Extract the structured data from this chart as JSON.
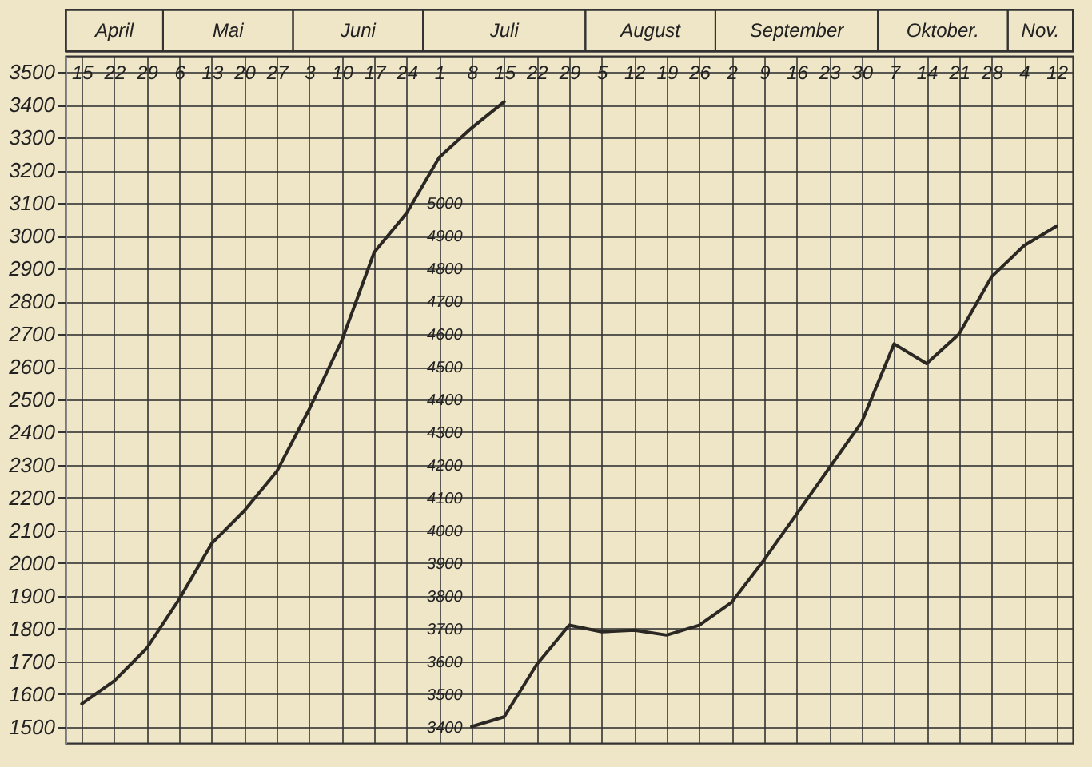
{
  "chart_data": {
    "type": "line",
    "categories": [
      "15",
      "22",
      "29",
      "6",
      "13",
      "20",
      "27",
      "3",
      "10",
      "17",
      "24",
      "1",
      "8",
      "15",
      "22",
      "29",
      "5",
      "12",
      "19",
      "26",
      "2",
      "9",
      "16",
      "23",
      "30",
      "7",
      "14",
      "21",
      "28",
      "4",
      "12"
    ],
    "annotations": [
      "April",
      "Mai",
      "Juni",
      "Juli",
      "August",
      "September",
      "Oktober.",
      "Nov."
    ],
    "series": [
      {
        "color": "#2b2824",
        "values": [
          1570,
          1640,
          1740,
          1890,
          2060,
          2160,
          2280,
          2470,
          2680,
          2950,
          3070,
          3240,
          3330,
          3410,
          null,
          null,
          null,
          null,
          null,
          null,
          null,
          null,
          null,
          null,
          null,
          null,
          null,
          null,
          null,
          null,
          null
        ]
      },
      {
        "color": "#2b2824",
        "axis": "y2",
        "values": [
          null,
          null,
          null,
          null,
          null,
          null,
          null,
          null,
          null,
          null,
          null,
          null,
          3400,
          3430,
          3590,
          3710,
          3690,
          3695,
          3680,
          3710,
          3780,
          3910,
          4050,
          4190,
          4330,
          4570,
          4510,
          4600,
          4775,
          4870,
          4930
        ]
      }
    ],
    "ylim": [
      1450,
      3550
    ],
    "yticks": [
      1500,
      1600,
      1700,
      1800,
      1900,
      2000,
      2100,
      2200,
      2300,
      2400,
      2500,
      2600,
      2700,
      2800,
      2900,
      3000,
      3100,
      3200,
      3300,
      3400,
      3500
    ],
    "y2lim": [
      3350,
      5450
    ],
    "y2ticks": [
      3400,
      3500,
      3600,
      3700,
      3800,
      3900,
      4000,
      4100,
      4200,
      4300,
      4400,
      4500,
      4600,
      4700,
      4800,
      4900,
      5000
    ],
    "grid": true,
    "line_style": "solid"
  }
}
